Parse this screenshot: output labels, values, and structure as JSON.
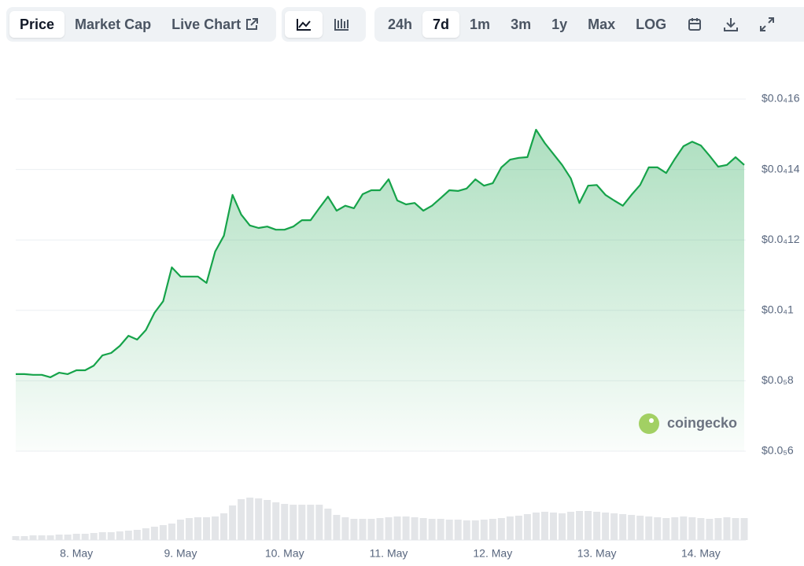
{
  "toolbar": {
    "views": [
      "Price",
      "Market Cap",
      "Live Chart"
    ],
    "ranges": [
      "24h",
      "7d",
      "1m",
      "3m",
      "1y",
      "Max",
      "LOG"
    ]
  },
  "watermark": "coingecko",
  "chart_data": {
    "type": "area",
    "x": [
      0,
      1,
      2,
      3,
      4,
      5,
      6,
      7,
      8,
      9,
      10,
      11,
      12,
      13,
      14,
      15,
      16,
      17,
      18,
      19,
      20,
      21,
      22,
      23,
      24,
      25,
      26,
      27,
      28,
      29,
      30,
      31,
      32,
      33,
      34,
      35,
      36,
      37,
      38,
      39,
      40,
      41,
      42,
      43,
      44,
      45,
      46,
      47,
      48,
      49,
      50,
      51,
      52,
      53,
      54,
      55,
      56,
      57,
      58,
      59,
      60,
      61,
      62,
      63,
      64,
      65,
      66,
      67,
      68,
      69,
      70,
      71,
      72,
      73,
      74,
      75,
      76,
      77,
      78,
      79,
      80,
      81,
      82,
      83,
      84
    ],
    "series": [
      {
        "color": "#16a34a",
        "values": [
          8.19e-06,
          8.19e-06,
          8.17e-06,
          8.17e-06,
          8.1e-06,
          8.23e-06,
          8.19e-06,
          8.3e-06,
          8.3e-06,
          8.43e-06,
          8.72e-06,
          8.79e-06,
          8.99e-06,
          9.28e-06,
          9.17e-06,
          9.44e-06,
          9.93e-06,
          1.026e-05,
          1.122e-05,
          1.096e-05,
          1.096e-05,
          1.096e-05,
          1.078e-05,
          1.167e-05,
          1.212e-05,
          1.328e-05,
          1.272e-05,
          1.241e-05,
          1.234e-05,
          1.238e-05,
          1.229e-05,
          1.229e-05,
          1.238e-05,
          1.256e-05,
          1.256e-05,
          1.29e-05,
          1.323e-05,
          1.283e-05,
          1.297e-05,
          1.29e-05,
          1.33e-05,
          1.341e-05,
          1.341e-05,
          1.372e-05,
          1.312e-05,
          1.301e-05,
          1.305e-05,
          1.283e-05,
          1.297e-05,
          1.319e-05,
          1.341e-05,
          1.339e-05,
          1.346e-05,
          1.372e-05,
          1.354e-05,
          1.361e-05,
          1.406e-05,
          1.428e-05,
          1.433e-05,
          1.435e-05,
          1.513e-05,
          1.475e-05,
          1.444e-05,
          1.413e-05,
          1.375e-05,
          1.305e-05,
          1.354e-05,
          1.356e-05,
          1.328e-05,
          1.312e-05,
          1.297e-05,
          1.328e-05,
          1.356e-05,
          1.406e-05,
          1.406e-05,
          1.39e-05,
          1.43e-05,
          1.466e-05,
          1.479e-05,
          1.468e-05,
          1.439e-05,
          1.408e-05,
          1.413e-05,
          1.435e-05,
          1.413e-05
        ]
      }
    ],
    "volume": [
      5,
      5,
      6,
      6,
      6,
      7,
      7,
      8,
      8,
      9,
      10,
      10,
      11,
      12,
      13,
      15,
      17,
      19,
      21,
      26,
      28,
      29,
      29,
      30,
      34,
      44,
      52,
      54,
      53,
      51,
      48,
      46,
      45,
      45,
      45,
      45,
      40,
      32,
      29,
      27,
      27,
      27,
      28,
      29,
      30,
      30,
      29,
      28,
      27,
      27,
      26,
      26,
      25,
      25,
      26,
      27,
      28,
      30,
      31,
      33,
      35,
      36,
      35,
      34,
      36,
      37,
      37,
      36,
      35,
      34,
      33,
      32,
      31,
      30,
      29,
      28,
      29,
      30,
      29,
      28,
      27,
      28,
      29,
      28,
      28
    ],
    "volume_color": "#e3e5e8",
    "xlim": [
      0,
      84
    ],
    "xticks": [
      {
        "value": 7,
        "label": "8. May"
      },
      {
        "value": 19,
        "label": "9. May"
      },
      {
        "value": 31,
        "label": "10. May"
      },
      {
        "value": 43,
        "label": "11. May"
      },
      {
        "value": 55,
        "label": "12. May"
      },
      {
        "value": 67,
        "label": "13. May"
      },
      {
        "value": 79,
        "label": "14. May"
      }
    ],
    "ylim": [
      6e-06,
      1.65e-05
    ],
    "yticks": [
      {
        "value": 6e-06,
        "label": "$0.0₅6"
      },
      {
        "value": 8e-06,
        "label": "$0.0₅8"
      },
      {
        "value": 1e-05,
        "label": "$0.0₄1"
      },
      {
        "value": 1.2e-05,
        "label": "$0.0₄12"
      },
      {
        "value": 1.4e-05,
        "label": "$0.0₄14"
      },
      {
        "value": 1.6e-05,
        "label": "$0.0₄16"
      }
    ],
    "grid": true
  }
}
